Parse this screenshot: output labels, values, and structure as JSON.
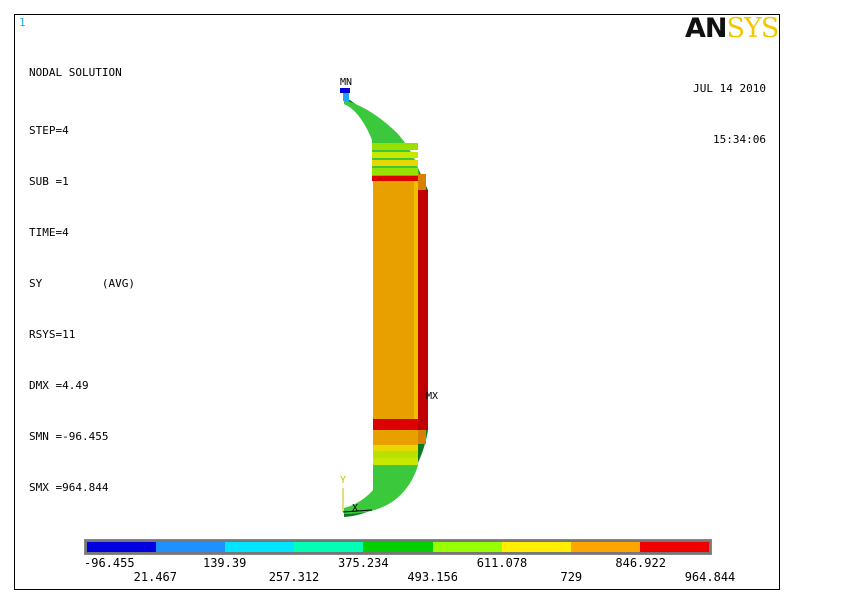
{
  "window_number": "1",
  "info": {
    "title": "NODAL SOLUTION",
    "step": "STEP=4",
    "sub": "SUB =1",
    "time": "TIME=4",
    "component": "SY         (AVG)",
    "rsys": "RSYS=11",
    "dmx": "DMX =4.49",
    "smn": "SMN =-96.455",
    "smx": "SMX =964.844"
  },
  "date": "JUL 14 2010",
  "time_of_day": "15:34:06",
  "logo": {
    "part1": "AN",
    "part2": "SYS"
  },
  "markers": {
    "min": "MN",
    "max": "MX",
    "axis_y": "Y",
    "axis_x": "X"
  },
  "legend": {
    "colors": [
      "#0000e0",
      "#1e90ff",
      "#00e5ff",
      "#00ffb4",
      "#00d000",
      "#98ff00",
      "#ffee00",
      "#ffa500",
      "#ee0000"
    ],
    "top_labels": [
      "-96.455",
      "139.39",
      "375.234",
      "611.078",
      "846.922"
    ],
    "bottom_labels": [
      "21.467",
      "257.312",
      "493.156",
      "729",
      "964.844"
    ]
  }
}
